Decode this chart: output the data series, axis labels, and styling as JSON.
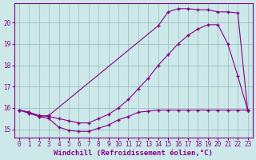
{
  "xlabel": "Windchill (Refroidissement éolien,°C)",
  "bg_color": "#cce8e8",
  "line_color": "#880088",
  "grid_color": "#99bbbb",
  "xlim": [
    -0.5,
    23.5
  ],
  "ylim": [
    14.6,
    20.9
  ],
  "xticks": [
    0,
    1,
    2,
    3,
    4,
    5,
    6,
    7,
    8,
    9,
    10,
    11,
    12,
    13,
    14,
    15,
    16,
    17,
    18,
    19,
    20,
    21,
    22,
    23
  ],
  "yticks": [
    15,
    16,
    17,
    18,
    19,
    20
  ],
  "line1_x": [
    0,
    1,
    2,
    3,
    4,
    5,
    6,
    7,
    8,
    9,
    10,
    11,
    12,
    13,
    14,
    15,
    16,
    17,
    18,
    19,
    20,
    21,
    22,
    23
  ],
  "line1_y": [
    15.9,
    15.75,
    15.6,
    15.5,
    15.1,
    14.95,
    14.9,
    14.9,
    15.05,
    15.2,
    15.45,
    15.6,
    15.8,
    15.85,
    15.9,
    15.9,
    15.9,
    15.9,
    15.9,
    15.9,
    15.9,
    15.9,
    15.9,
    15.9
  ],
  "line2_x": [
    0,
    1,
    2,
    3,
    4,
    5,
    6,
    7,
    8,
    9,
    10,
    11,
    12,
    13,
    14,
    15,
    16,
    17,
    18,
    19,
    20,
    21,
    22,
    23
  ],
  "line2_y": [
    15.9,
    15.8,
    15.65,
    15.6,
    15.5,
    15.4,
    15.3,
    15.3,
    15.5,
    15.7,
    16.0,
    16.4,
    16.9,
    17.4,
    18.0,
    18.5,
    19.0,
    19.4,
    19.7,
    19.9,
    19.9,
    19.0,
    17.5,
    15.9
  ],
  "line3_x": [
    0,
    1,
    2,
    3,
    14,
    15,
    16,
    17,
    18,
    19,
    20,
    21,
    22,
    23
  ],
  "line3_y": [
    15.9,
    15.8,
    15.6,
    15.65,
    19.85,
    20.5,
    20.65,
    20.65,
    20.6,
    20.6,
    20.5,
    20.5,
    20.45,
    15.9
  ],
  "font_family": "monospace",
  "tick_fontsize": 5.5,
  "label_fontsize": 6.5
}
